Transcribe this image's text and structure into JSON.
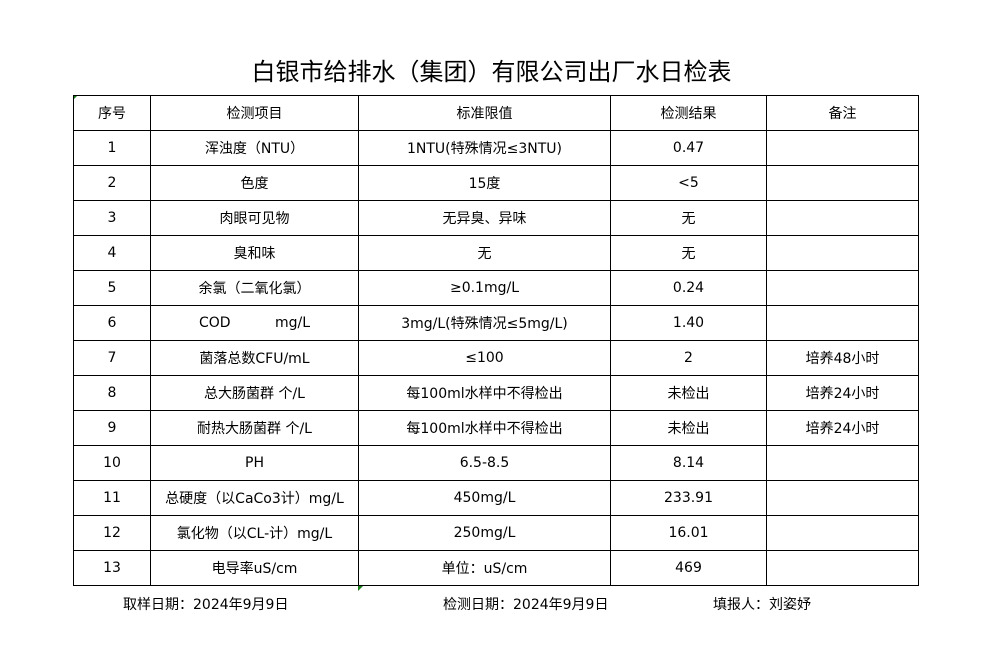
{
  "title": "白银市给排水（集团）有限公司出厂水日检表",
  "headers": [
    "序号",
    "检测项目",
    "标准限值",
    "检测结果",
    "备注"
  ],
  "rows": [
    [
      "1",
      "浑浊度（NTU）",
      "1NTU(特殊情况≤3NTU)",
      "0.47",
      ""
    ],
    [
      "2",
      "色度",
      "15度",
      "<5",
      ""
    ],
    [
      "3",
      "肉眼可见物",
      "无异臭、异味",
      "无",
      ""
    ],
    [
      "4",
      "臭和味",
      "无",
      "无",
      ""
    ],
    [
      "5",
      "余氯（二氧化氯）",
      "≥0.1mg/L",
      "0.24",
      ""
    ],
    [
      "6",
      "COD          mg/L",
      "3mg/L(特殊情况≤5mg/L)",
      "1.40",
      ""
    ],
    [
      "7",
      "菌落总数CFU/mL",
      "≤100",
      "2",
      "培养48小时"
    ],
    [
      "8",
      "总大肠菌群 个/L",
      "每100ml水样中不得检出",
      "未检出",
      "培养24小时"
    ],
    [
      "9",
      "耐热大肠菌群 个/L",
      "每100ml水样中不得检出",
      "未检出",
      "培养24小时"
    ],
    [
      "10",
      "PH",
      "6.5-8.5",
      "8.14",
      ""
    ],
    [
      "11",
      "总硬度（以CaCo3计）mg/L",
      "450mg/L",
      "233.91",
      ""
    ],
    [
      "12",
      "氯化物（以CL-计）mg/L",
      "250mg/L",
      "16.01",
      ""
    ],
    [
      "13",
      "电导率uS/cm",
      "单位：uS/cm",
      "469",
      ""
    ]
  ],
  "footer": {
    "sample_date": "取样日期：2024年9月9日",
    "test_date": "检测日期：2024年9月9日",
    "reporter": "填报人：刘姿妤"
  }
}
